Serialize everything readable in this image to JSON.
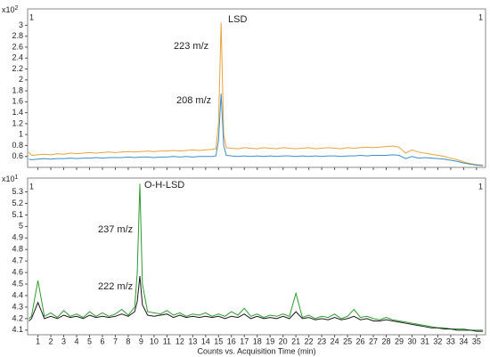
{
  "chart_data": [
    {
      "type": "line",
      "scale_base": "x10",
      "scale_exponent": "2",
      "corner_mark": "1",
      "annotations": [
        "LSD"
      ],
      "x": [
        0.3,
        0.5,
        1,
        1.5,
        2,
        2.5,
        3,
        3.5,
        4,
        4.5,
        5,
        5.5,
        6,
        6.5,
        7,
        7.5,
        8,
        8.5,
        9,
        9.5,
        10,
        10.5,
        11,
        11.5,
        12,
        12.5,
        13,
        13.5,
        14,
        14.5,
        14.8,
        15,
        15.2,
        15.4,
        15.6,
        16,
        16.5,
        17,
        17.5,
        18,
        18.5,
        19,
        19.5,
        20,
        20.5,
        21,
        21.5,
        22,
        22.5,
        23,
        23.5,
        24,
        24.5,
        25,
        25.5,
        26,
        26.5,
        27,
        27.5,
        28,
        28.5,
        29,
        29.5,
        30,
        30.5,
        31,
        31.5,
        32,
        32.5,
        33,
        33.5,
        34,
        34.5,
        35,
        35.5
      ],
      "series": [
        {
          "name": "223 m/z",
          "color": "#e8a33a",
          "values": [
            0.68,
            0.62,
            0.63,
            0.64,
            0.63,
            0.65,
            0.64,
            0.66,
            0.65,
            0.66,
            0.67,
            0.66,
            0.67,
            0.68,
            0.67,
            0.68,
            0.69,
            0.68,
            0.69,
            0.7,
            0.69,
            0.7,
            0.7,
            0.71,
            0.7,
            0.71,
            0.72,
            0.71,
            0.72,
            0.73,
            0.74,
            1.2,
            3.05,
            1.0,
            0.76,
            0.75,
            0.74,
            0.76,
            0.75,
            0.74,
            0.76,
            0.75,
            0.74,
            0.76,
            0.75,
            0.74,
            0.75,
            0.76,
            0.74,
            0.75,
            0.76,
            0.75,
            0.74,
            0.76,
            0.75,
            0.76,
            0.77,
            0.76,
            0.77,
            0.78,
            0.79,
            0.77,
            0.66,
            0.72,
            0.68,
            0.66,
            0.64,
            0.62,
            0.6,
            0.57,
            0.54,
            0.5,
            0.47,
            0.45,
            0.44
          ]
        },
        {
          "name": "208 m/z",
          "color": "#3a8fc8",
          "values": [
            0.55,
            0.54,
            0.55,
            0.56,
            0.55,
            0.56,
            0.56,
            0.57,
            0.56,
            0.57,
            0.57,
            0.58,
            0.57,
            0.58,
            0.58,
            0.58,
            0.59,
            0.58,
            0.59,
            0.59,
            0.58,
            0.59,
            0.59,
            0.6,
            0.59,
            0.6,
            0.59,
            0.6,
            0.6,
            0.6,
            0.61,
            0.9,
            1.75,
            0.8,
            0.62,
            0.61,
            0.6,
            0.61,
            0.6,
            0.61,
            0.6,
            0.61,
            0.6,
            0.61,
            0.61,
            0.6,
            0.61,
            0.6,
            0.61,
            0.6,
            0.61,
            0.61,
            0.6,
            0.61,
            0.61,
            0.62,
            0.61,
            0.62,
            0.62,
            0.62,
            0.63,
            0.62,
            0.56,
            0.6,
            0.57,
            0.58,
            0.57,
            0.56,
            0.55,
            0.53,
            0.51,
            0.48,
            0.46,
            0.44,
            0.43
          ]
        }
      ],
      "xlim": [
        0.2,
        35.7
      ],
      "xticks": [
        1,
        2,
        3,
        4,
        5,
        6,
        7,
        8,
        9,
        10,
        11,
        12,
        13,
        14,
        15,
        16,
        17,
        18,
        19,
        20,
        21,
        22,
        23,
        24,
        25,
        26,
        27,
        28,
        29,
        30,
        31,
        32,
        33,
        34,
        35
      ],
      "ylim": [
        0.4,
        3.3
      ],
      "yticks": [
        0.6,
        0.8,
        1,
        1.2,
        1.4,
        1.6,
        1.8,
        2,
        2.2,
        2.4,
        2.6,
        2.8,
        3
      ]
    },
    {
      "type": "line",
      "scale_base": "x10",
      "scale_exponent": "1",
      "corner_mark": "1",
      "annotations": [
        "O-H-LSD"
      ],
      "xlabel": "Counts vs. Acquisition Time (min)",
      "x": [
        0.3,
        0.5,
        1,
        1.5,
        2,
        2.5,
        3,
        3.5,
        4,
        4.5,
        5,
        5.5,
        6,
        6.5,
        7,
        7.5,
        8,
        8.5,
        8.7,
        8.9,
        9.1,
        9.5,
        10,
        10.5,
        11,
        11.5,
        12,
        12.5,
        13,
        13.5,
        14,
        14.5,
        15,
        15.5,
        16,
        16.5,
        17,
        17.5,
        18,
        18.5,
        19,
        19.5,
        20,
        20.5,
        21,
        21.5,
        22,
        22.5,
        23,
        23.5,
        24,
        24.5,
        25,
        25.5,
        26,
        26.5,
        27,
        27.5,
        28,
        28.5,
        29,
        29.5,
        30,
        30.5,
        31,
        31.5,
        32,
        32.5,
        33,
        33.5,
        34,
        34.5,
        35,
        35.5
      ],
      "series": [
        {
          "name": "237 m/z",
          "color": "#2e9a2e",
          "values": [
            4.2,
            4.22,
            4.53,
            4.22,
            4.25,
            4.21,
            4.27,
            4.22,
            4.24,
            4.21,
            4.26,
            4.22,
            4.25,
            4.22,
            4.24,
            4.28,
            4.23,
            4.3,
            4.6,
            5.37,
            4.5,
            4.26,
            4.25,
            4.24,
            4.27,
            4.23,
            4.25,
            4.22,
            4.24,
            4.23,
            4.25,
            4.22,
            4.24,
            4.22,
            4.26,
            4.23,
            4.29,
            4.22,
            4.24,
            4.21,
            4.23,
            4.22,
            4.24,
            4.22,
            4.42,
            4.21,
            4.23,
            4.2,
            4.22,
            4.21,
            4.24,
            4.2,
            4.22,
            4.28,
            4.21,
            4.22,
            4.2,
            4.19,
            4.21,
            4.19,
            4.18,
            4.17,
            4.16,
            4.15,
            4.14,
            4.13,
            4.12,
            4.12,
            4.11,
            4.11,
            4.11,
            4.1,
            4.1,
            4.1
          ]
        },
        {
          "name": "222 m/z",
          "color": "#1a1a1a",
          "values": [
            4.18,
            4.2,
            4.34,
            4.2,
            4.22,
            4.2,
            4.23,
            4.21,
            4.22,
            4.2,
            4.23,
            4.21,
            4.22,
            4.21,
            4.22,
            4.24,
            4.22,
            4.26,
            4.35,
            4.57,
            4.32,
            4.23,
            4.22,
            4.23,
            4.24,
            4.21,
            4.23,
            4.21,
            4.22,
            4.21,
            4.22,
            4.21,
            4.22,
            4.2,
            4.22,
            4.21,
            4.24,
            4.2,
            4.22,
            4.2,
            4.21,
            4.2,
            4.22,
            4.2,
            4.26,
            4.2,
            4.21,
            4.19,
            4.2,
            4.19,
            4.21,
            4.19,
            4.2,
            4.22,
            4.19,
            4.2,
            4.18,
            4.18,
            4.19,
            4.18,
            4.17,
            4.16,
            4.15,
            4.14,
            4.13,
            4.12,
            4.12,
            4.11,
            4.11,
            4.1,
            4.1,
            4.1,
            4.09,
            4.09
          ]
        }
      ],
      "xlim": [
        0.2,
        35.7
      ],
      "xticks": [
        1,
        2,
        3,
        4,
        5,
        6,
        7,
        8,
        9,
        10,
        11,
        12,
        13,
        14,
        15,
        16,
        17,
        18,
        19,
        20,
        21,
        22,
        23,
        24,
        25,
        26,
        27,
        28,
        29,
        30,
        31,
        32,
        33,
        34,
        35
      ],
      "ylim": [
        4.06,
        5.42
      ],
      "yticks": [
        4.1,
        4.2,
        4.3,
        4.4,
        4.5,
        4.6,
        4.7,
        4.8,
        4.9,
        5,
        5.1,
        5.2,
        5.3
      ]
    }
  ]
}
